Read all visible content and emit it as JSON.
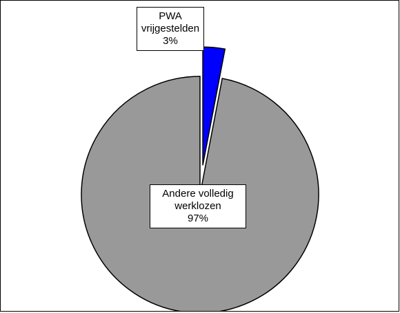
{
  "chart_data": {
    "type": "pie",
    "categories": [
      "PWA vrijgestelden",
      "Andere volledig werklozen"
    ],
    "values": [
      3,
      97
    ],
    "value_labels": [
      "3%",
      "97%"
    ],
    "colors": [
      "#0000ff",
      "#999999"
    ]
  }
}
